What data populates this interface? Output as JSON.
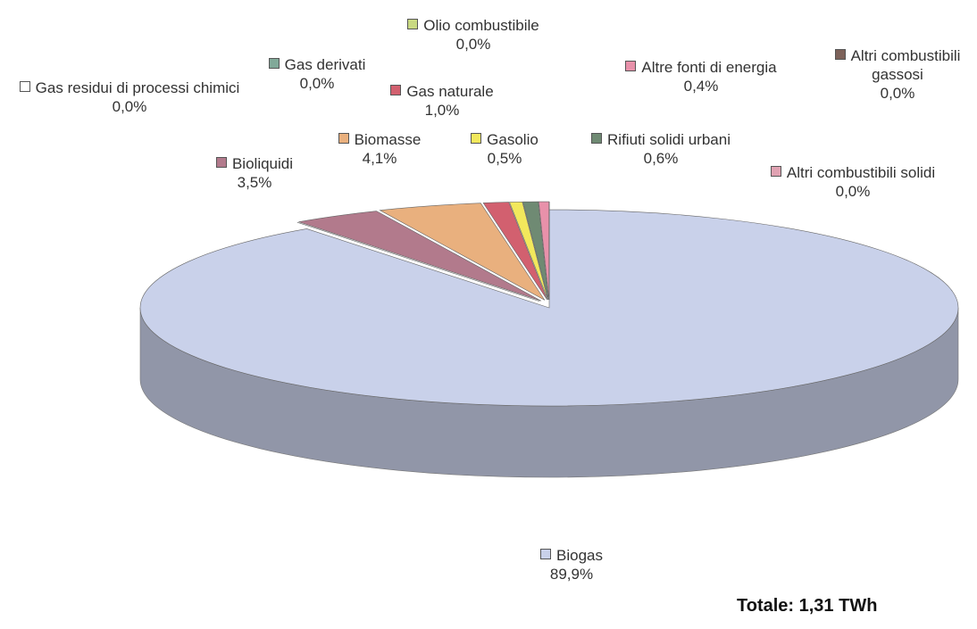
{
  "chart_data": {
    "type": "pie3d",
    "annotation": "Totale: 1,31 TWh",
    "categories": [
      "Biogas",
      "Altri combustibili gassosi",
      "Bioliquidi",
      "Biomasse",
      "Gas naturale",
      "Gasolio",
      "Rifiuti solidi urbani",
      "Altre fonti di energia",
      "Altri combustibili solidi",
      "Olio combustibile",
      "Gas derivati",
      "Gas residui di processi chimici"
    ],
    "values": [
      89.9,
      0.0,
      3.5,
      4.1,
      1.0,
      0.5,
      0.6,
      0.4,
      0.0,
      0.0,
      0.0,
      0.0
    ],
    "value_labels": [
      "89,9%",
      "0,0%",
      "3,5%",
      "4,1%",
      "1,0%",
      "0,5%",
      "0,6%",
      "0,4%",
      "0,0%",
      "0,0%",
      "0,0%",
      "0,0%"
    ],
    "colors": [
      "#c9d1ea",
      "#7d625a",
      "#b27a8c",
      "#e9b07e",
      "#d2606f",
      "#f2e85c",
      "#6f8a73",
      "#e891aa",
      "#e0a2b2",
      "#c9d982",
      "#81a999",
      "#ffffff"
    ]
  }
}
